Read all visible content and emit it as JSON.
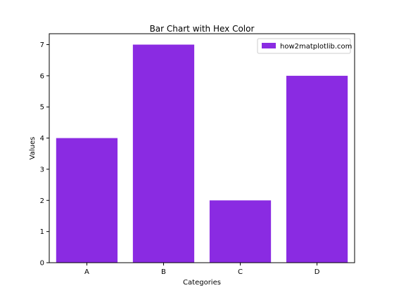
{
  "chart_data": {
    "type": "bar",
    "title": "Bar Chart with Hex Color",
    "xlabel": "Categories",
    "ylabel": "Values",
    "categories": [
      "A",
      "B",
      "C",
      "D"
    ],
    "series": [
      {
        "name": "how2matplotlib.com",
        "values": [
          4,
          7,
          2,
          6
        ],
        "color": "#8A2BE2"
      }
    ],
    "ylim": [
      0,
      7.35
    ],
    "yticks": [
      0,
      1,
      2,
      3,
      4,
      5,
      6,
      7
    ],
    "grid": false,
    "legend": "upper-right"
  }
}
